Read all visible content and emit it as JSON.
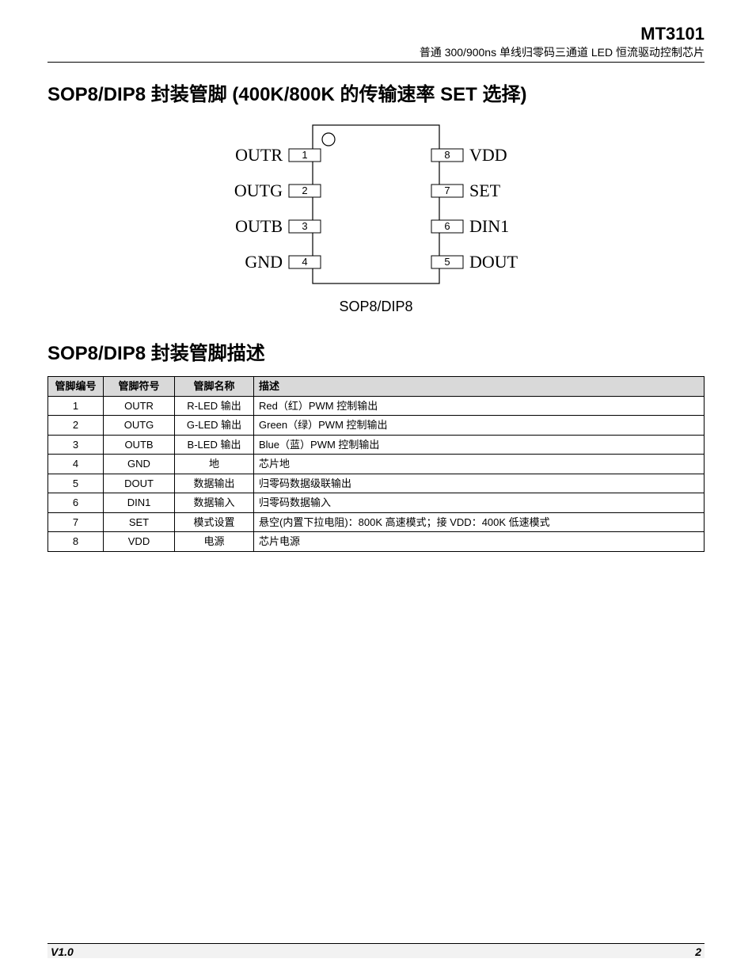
{
  "header": {
    "part_number": "MT3101",
    "subtitle": "普通 300/900ns 单线归零码三通道  LED 恒流驱动控制芯片"
  },
  "section1": {
    "title": "SOP8/DIP8 封装管脚  (400K/800K 的传输速率 SET 选择)"
  },
  "diagram": {
    "caption": "SOP8/DIP8",
    "body_outline": "#000000",
    "bg": "#ffffff",
    "notch_radius": 7,
    "left_pins": [
      {
        "num": "1",
        "label": "OUTR"
      },
      {
        "num": "2",
        "label": "OUTG"
      },
      {
        "num": "3",
        "label": "OUTB"
      },
      {
        "num": "4",
        "label": "GND"
      }
    ],
    "right_pins": [
      {
        "num": "8",
        "label": "VDD"
      },
      {
        "num": "7",
        "label": "SET"
      },
      {
        "num": "6",
        "label": "DIN1"
      },
      {
        "num": "5",
        "label": "DOUT"
      }
    ]
  },
  "section2": {
    "title": "SOP8/DIP8 封装管脚描述"
  },
  "table": {
    "headers": {
      "num": "管脚编号",
      "symbol": "管脚符号",
      "name": "管脚名称",
      "desc": "描述"
    },
    "rows": [
      {
        "num": "1",
        "symbol": "OUTR",
        "name": "R-LED 输出",
        "desc": "Red（红）PWM 控制输出"
      },
      {
        "num": "2",
        "symbol": "OUTG",
        "name": "G-LED 输出",
        "desc": "Green（绿）PWM 控制输出"
      },
      {
        "num": "3",
        "symbol": "OUTB",
        "name": "B-LED 输出",
        "desc": "Blue（蓝）PWM 控制输出"
      },
      {
        "num": "4",
        "symbol": "GND",
        "name": "地",
        "desc": "芯片地"
      },
      {
        "num": "5",
        "symbol": "DOUT",
        "name": "数据输出",
        "desc": "归零码数据级联输出"
      },
      {
        "num": "6",
        "symbol": "DIN1",
        "name": "数据输入",
        "desc": "归零码数据输入"
      },
      {
        "num": "7",
        "symbol": "SET",
        "name": "模式设置",
        "desc": "悬空(内置下拉电阻)：800K 高速模式；接 VDD：400K 低速模式"
      },
      {
        "num": "8",
        "symbol": "VDD",
        "name": "电源",
        "desc": "芯片电源"
      }
    ]
  },
  "footer": {
    "version": "V1.0",
    "page": "2"
  }
}
